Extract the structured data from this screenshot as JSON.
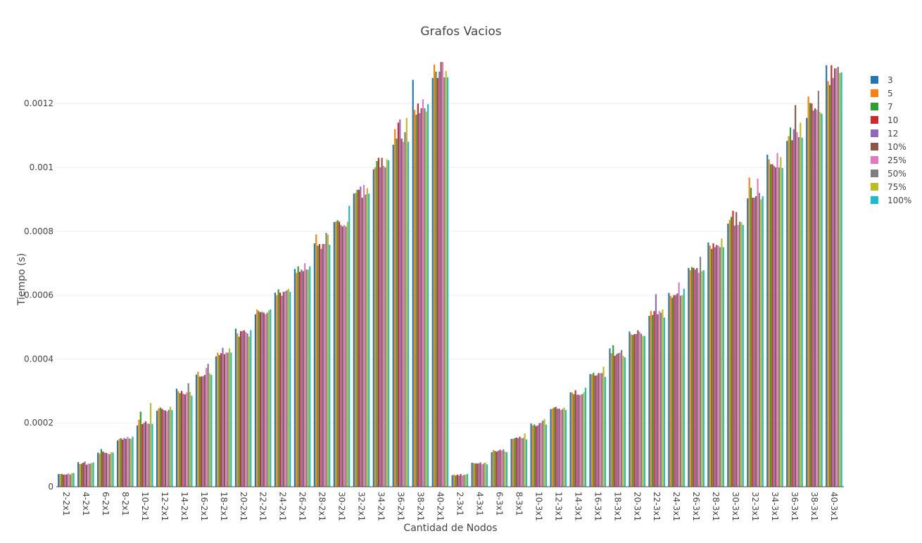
{
  "chart_data": {
    "type": "bar",
    "title": "Grafos Vacios",
    "xlabel": "Cantidad de Nodos",
    "ylabel": "Tiempo (s)",
    "ylim": [
      0,
      0.00137
    ],
    "y_ticks": [
      "0",
      "0.0002",
      "0.0004",
      "0.0006",
      "0.0008",
      "0.001",
      "0.0012"
    ],
    "legend_position": "right",
    "grid": true,
    "categories": [
      "2-2x1",
      "4-2x1",
      "6-2x1",
      "8-2x1",
      "10-2x1",
      "12-2x1",
      "14-2x1",
      "16-2x1",
      "18-2x1",
      "20-2x1",
      "22-2x1",
      "24-2x1",
      "26-2x1",
      "28-2x1",
      "30-2x1",
      "32-2x1",
      "34-2x1",
      "36-2x1",
      "38-2x1",
      "40-2x1",
      "2-3x1",
      "4-3x1",
      "6-3x1",
      "8-3x1",
      "10-3x1",
      "12-3x1",
      "14-3x1",
      "16-3x1",
      "18-3x1",
      "20-3x1",
      "22-3x1",
      "24-3x1",
      "26-3x1",
      "28-3x1",
      "30-3x1",
      "32-3x1",
      "34-3x1",
      "36-3x1",
      "38-3x1",
      "40-3x1"
    ],
    "series": [
      {
        "name": "3",
        "color": "#1f77b4",
        "values": [
          4e-05,
          7.7e-05,
          0.000107,
          0.000145,
          0.000192,
          0.000238,
          0.000307,
          0.000351,
          0.000408,
          0.000495,
          0.00054,
          0.000608,
          0.000682,
          0.000762,
          0.000829,
          0.000918,
          0.000994,
          0.001071,
          0.001274,
          0.00128,
          3.6e-05,
          7.5e-05,
          0.000108,
          0.00015,
          0.000198,
          0.000243,
          0.000296,
          0.000353,
          0.000433,
          0.000486,
          0.000535,
          0.000607,
          0.000685,
          0.000765,
          0.000824,
          0.000903,
          0.00104,
          0.001083,
          0.001155,
          0.00132
        ]
      },
      {
        "name": "5",
        "color": "#ff7f0e",
        "values": [
          4e-05,
          7.1e-05,
          0.000104,
          0.00015,
          0.00021,
          0.000245,
          0.000299,
          0.00036,
          0.00042,
          0.00048,
          0.000555,
          0.0006,
          0.00067,
          0.00079,
          0.00083,
          0.00092,
          0.001,
          0.00112,
          0.00118,
          0.001322,
          3.8e-05,
          7.4e-05,
          0.000115,
          0.00015,
          0.000192,
          0.000245,
          0.000295,
          0.000352,
          0.000418,
          0.000477,
          0.00055,
          0.000598,
          0.000678,
          0.000755,
          0.000835,
          0.000968,
          0.001025,
          0.001098,
          0.001222,
          0.00127
        ]
      },
      {
        "name": "7",
        "color": "#2ca02c",
        "values": [
          4e-05,
          7.2e-05,
          0.000118,
          0.000152,
          0.000235,
          0.000248,
          0.000293,
          0.000345,
          0.000412,
          0.00047,
          0.00055,
          0.000618,
          0.00069,
          0.000755,
          0.000835,
          0.00093,
          0.00102,
          0.00109,
          0.001165,
          0.0013,
          3.5e-05,
          7.3e-05,
          0.000112,
          0.000152,
          0.000195,
          0.000248,
          0.00029,
          0.000357,
          0.000443,
          0.000475,
          0.000538,
          0.000592,
          0.000688,
          0.000745,
          0.000845,
          0.000936,
          0.00101,
          0.001125,
          0.001202,
          0.001258
        ]
      },
      {
        "name": "10",
        "color": "#d62728",
        "values": [
          3.8e-05,
          7.5e-05,
          0.00011,
          0.000148,
          0.000196,
          0.000244,
          0.0003,
          0.000345,
          0.000418,
          0.000487,
          0.000546,
          0.000608,
          0.000673,
          0.00076,
          0.00083,
          0.00093,
          0.00103,
          0.00114,
          0.0012,
          0.00128,
          3.8e-05,
          7.3e-05,
          0.00011,
          0.000154,
          0.00019,
          0.00025,
          0.000302,
          0.000348,
          0.00041,
          0.000478,
          0.00055,
          0.0006,
          0.000685,
          0.000762,
          0.000864,
          0.000905,
          0.00101,
          0.001085,
          0.0012,
          0.00132
        ]
      },
      {
        "name": "12",
        "color": "#9467bd",
        "values": [
          3.8e-05,
          7.9e-05,
          0.000107,
          0.000153,
          0.0002,
          0.00024,
          0.000291,
          0.000346,
          0.000435,
          0.000488,
          0.000548,
          0.000598,
          0.00068,
          0.000745,
          0.00082,
          0.00094,
          0.001,
          0.00115,
          0.00117,
          0.0013,
          3.5e-05,
          7.3e-05,
          0.000113,
          0.000152,
          0.000192,
          0.000244,
          0.000288,
          0.000349,
          0.000415,
          0.000478,
          0.000603,
          0.0006,
          0.00068,
          0.00075,
          0.000818,
          0.000905,
          0.001005,
          0.00112,
          0.001178,
          0.00128
        ]
      },
      {
        "name": "10%",
        "color": "#8c564b",
        "values": [
          3.9e-05,
          6.9e-05,
          0.000106,
          0.00015,
          0.000205,
          0.000239,
          0.000289,
          0.00035,
          0.000415,
          0.00049,
          0.000545,
          0.00061,
          0.000675,
          0.00076,
          0.000815,
          0.000905,
          0.00103,
          0.00109,
          0.001185,
          0.00133,
          4e-05,
          7.6e-05,
          0.000116,
          0.000157,
          0.000199,
          0.000245,
          0.000288,
          0.000356,
          0.000418,
          0.00049,
          0.00054,
          0.000605,
          0.000685,
          0.000757,
          0.00086,
          0.00091,
          0.001,
          0.001195,
          0.001185,
          0.00131
        ]
      },
      {
        "name": "25%",
        "color": "#e377c2",
        "values": [
          4.2e-05,
          7.2e-05,
          0.000104,
          0.000156,
          0.000198,
          0.000236,
          0.000295,
          0.000372,
          0.00042,
          0.000485,
          0.00054,
          0.000612,
          0.0007,
          0.00076,
          0.00082,
          0.000945,
          0.001005,
          0.00108,
          0.001213,
          0.00133,
          3.5e-05,
          7e-05,
          0.000113,
          0.000152,
          0.0002,
          0.00024,
          0.000287,
          0.000355,
          0.00042,
          0.000485,
          0.00055,
          0.00064,
          0.00067,
          0.000755,
          0.00082,
          0.000965,
          0.001045,
          0.00111,
          0.00118,
          0.00131
        ]
      },
      {
        "name": "50%",
        "color": "#7f7f7f",
        "values": [
          3.8e-05,
          7.2e-05,
          0.000102,
          0.000151,
          0.000197,
          0.000241,
          0.000324,
          0.000385,
          0.00042,
          0.00048,
          0.000545,
          0.000615,
          0.00068,
          0.000795,
          0.000815,
          0.000915,
          0.001,
          0.00111,
          0.001185,
          0.001282,
          3.7e-05,
          7.3e-05,
          0.000117,
          0.000153,
          0.000207,
          0.000243,
          0.00029,
          0.000356,
          0.000428,
          0.000479,
          0.000545,
          0.000598,
          0.00072,
          0.00075,
          0.00083,
          0.00092,
          0.001,
          0.001095,
          0.00124,
          0.001315
        ]
      },
      {
        "name": "75%",
        "color": "#bcbd22",
        "values": [
          4.3e-05,
          7.4e-05,
          0.000108,
          0.00015,
          0.000262,
          0.00025,
          0.000297,
          0.000355,
          0.000433,
          0.00047,
          0.000552,
          0.00062,
          0.00068,
          0.00079,
          0.00083,
          0.000935,
          0.001025,
          0.001155,
          0.001175,
          0.001302,
          3.8e-05,
          7.6e-05,
          0.00011,
          0.000167,
          0.000212,
          0.000248,
          0.000296,
          0.000376,
          0.00041,
          0.000472,
          0.000555,
          0.0006,
          0.000675,
          0.000777,
          0.000828,
          0.0009,
          0.001032,
          0.00114,
          0.001173,
          0.001295
        ]
      },
      {
        "name": "100%",
        "color": "#17becf",
        "values": [
          4.3e-05,
          7.6e-05,
          0.000107,
          0.000157,
          0.000197,
          0.00024,
          0.000285,
          0.00035,
          0.00042,
          0.00049,
          0.000555,
          0.00061,
          0.00069,
          0.000758,
          0.00088,
          0.000918,
          0.001022,
          0.00108,
          0.001198,
          0.001282,
          4e-05,
          7e-05,
          0.000108,
          0.000148,
          0.000195,
          0.00024,
          0.00031,
          0.000344,
          0.000405,
          0.000472,
          0.00053,
          0.00062,
          0.000678,
          0.00075,
          0.00082,
          0.00091,
          0.000998,
          0.001093,
          0.001168,
          0.001298
        ]
      }
    ]
  }
}
